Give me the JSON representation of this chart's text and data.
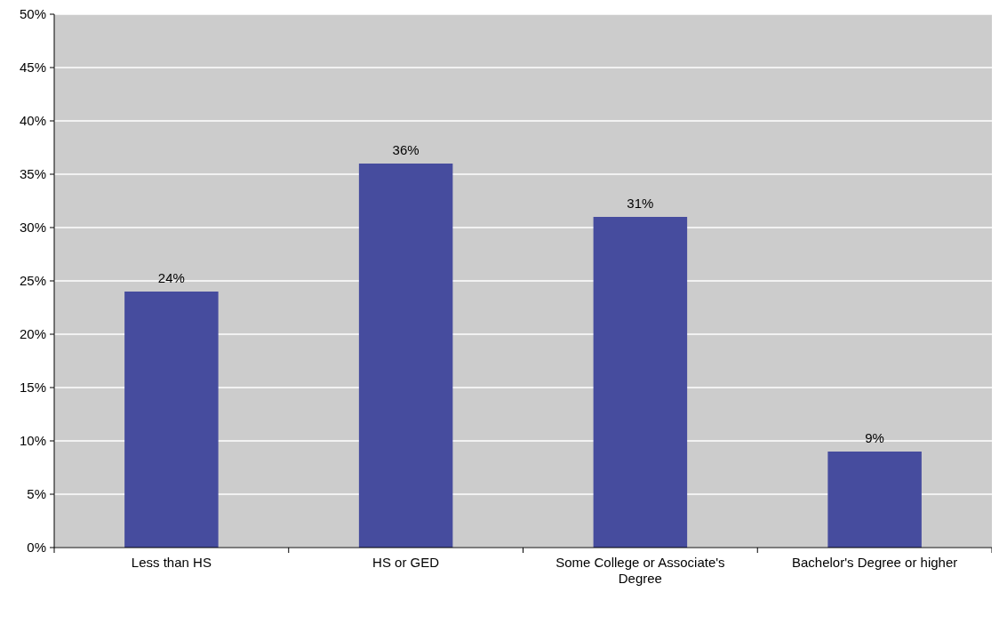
{
  "chart_data": {
    "type": "bar",
    "categories": [
      "Less than HS",
      "HS or GED",
      "Some College or Associate's Degree",
      "Bachelor's Degree or higher"
    ],
    "values": [
      24,
      36,
      31,
      9
    ],
    "value_labels": [
      "24%",
      "36%",
      "31%",
      "9%"
    ],
    "color": "#464c9e",
    "ylim": [
      0,
      50
    ],
    "yticks": [
      {
        "value": 0,
        "label": "0%"
      },
      {
        "value": 5,
        "label": "5%"
      },
      {
        "value": 10,
        "label": "10%"
      },
      {
        "value": 15,
        "label": "15%"
      },
      {
        "value": 20,
        "label": "20%"
      },
      {
        "value": 25,
        "label": "25%"
      },
      {
        "value": 30,
        "label": "30%"
      },
      {
        "value": 35,
        "label": "35%"
      },
      {
        "value": 40,
        "label": "40%"
      },
      {
        "value": 45,
        "label": "45%"
      },
      {
        "value": 50,
        "label": "50%"
      }
    ],
    "grid": "y"
  }
}
